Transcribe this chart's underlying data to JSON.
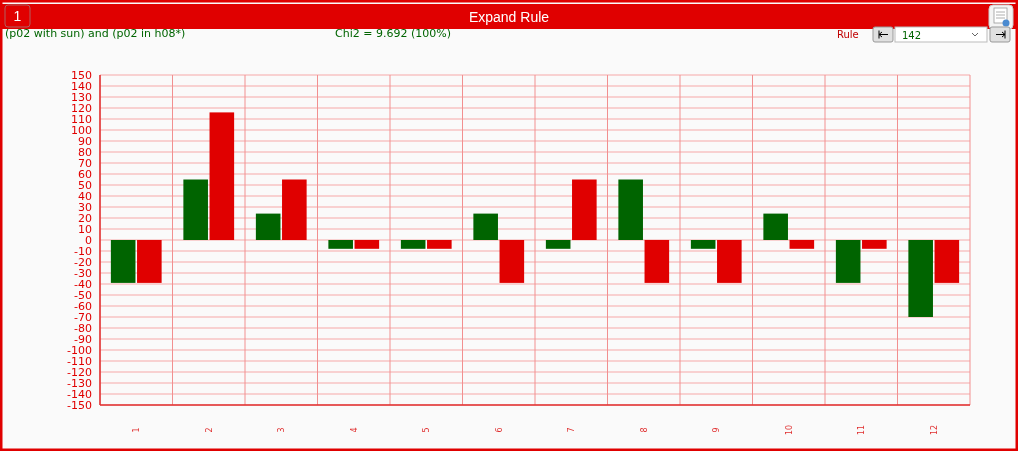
{
  "chart_data": {
    "type": "bar",
    "title": "Expand Rule",
    "subtitle": "(p02 with sun) and (p02 in h08*)",
    "annotations": [
      "Chi2 = 9.692 (100%)",
      "1",
      "Rule",
      "142"
    ],
    "categories": [
      "1",
      "2",
      "3",
      "4",
      "5",
      "6",
      "7",
      "8",
      "9",
      "10",
      "11",
      "12"
    ],
    "series": [
      {
        "color": "#006400",
        "values": [
          -39,
          55,
          24,
          -8,
          -8,
          24,
          -8,
          55,
          -8,
          24,
          -39,
          -70
        ]
      },
      {
        "color": "#e00000",
        "values": [
          -39,
          116,
          55,
          -8,
          -8,
          -39,
          55,
          -39,
          -39,
          -8,
          -8,
          -39
        ]
      }
    ],
    "ylim": [
      -150,
      150
    ],
    "yticks": [
      -150,
      -140,
      -130,
      -120,
      -110,
      -100,
      -90,
      -80,
      -70,
      -60,
      -50,
      -40,
      -30,
      -20,
      -10,
      0,
      10,
      20,
      30,
      40,
      50,
      60,
      70,
      80,
      90,
      100,
      110,
      120,
      130,
      140,
      150
    ],
    "grid": true
  }
}
